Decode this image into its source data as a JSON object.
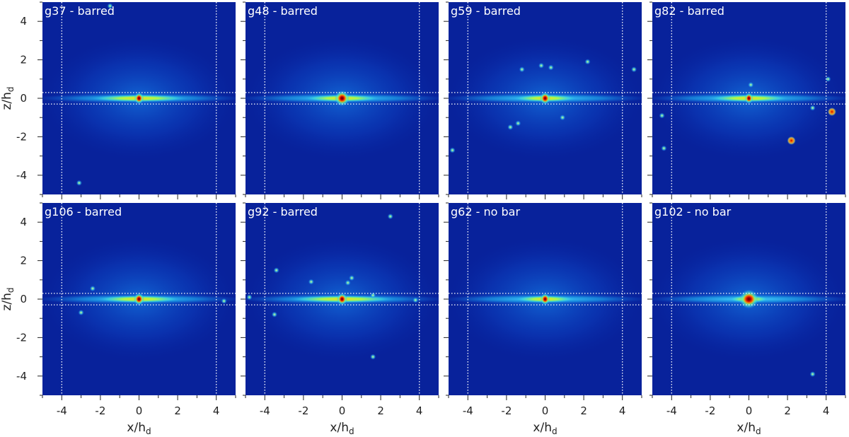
{
  "chart_data": {
    "type": "heatmap",
    "description_colormap": "jet",
    "xlabel": "x/h",
    "xlabel_sub": "d",
    "ylabel": "z/h",
    "ylabel_sub": "d",
    "xlim": [
      -5,
      5
    ],
    "ylim": [
      -5,
      5
    ],
    "x_ticks": [
      -4,
      -2,
      0,
      2,
      4
    ],
    "y_ticks": [
      -4,
      -2,
      0,
      2,
      4
    ],
    "reference_lines": {
      "vertical_x": [
        -4,
        4
      ],
      "horizontal_z": [
        -0.3,
        0.3
      ]
    },
    "panels": [
      {
        "title": "g37 - barred",
        "row": 0,
        "col": 0,
        "bar_length": 2.4,
        "bulge": 0.55,
        "blobs": [
          {
            "x": -3.1,
            "z": -4.4
          },
          {
            "x": -1.5,
            "z": 4.8
          }
        ]
      },
      {
        "title": "g48 - barred",
        "row": 0,
        "col": 1,
        "bar_length": 1.9,
        "bulge": 0.85,
        "blobs": []
      },
      {
        "title": "g59 - barred",
        "row": 0,
        "col": 2,
        "bar_length": 1.6,
        "bulge": 0.6,
        "blobs": [
          {
            "x": -1.2,
            "z": 1.5
          },
          {
            "x": -0.2,
            "z": 1.7
          },
          {
            "x": 0.3,
            "z": 1.6
          },
          {
            "x": 0.9,
            "z": -1.0
          },
          {
            "x": -1.4,
            "z": -1.3
          },
          {
            "x": -1.8,
            "z": -1.5
          },
          {
            "x": 2.2,
            "z": 1.9
          },
          {
            "x": 4.6,
            "z": 1.5
          },
          {
            "x": -4.8,
            "z": -2.7
          }
        ]
      },
      {
        "title": "g82 - barred",
        "row": 0,
        "col": 3,
        "bar_length": 2.0,
        "bulge": 0.5,
        "blobs": [
          {
            "x": 0.1,
            "z": 0.7
          },
          {
            "x": 2.2,
            "z": -2.2
          },
          {
            "x": 4.3,
            "z": -0.7
          },
          {
            "x": -4.5,
            "z": -0.9
          },
          {
            "x": -4.4,
            "z": -2.6
          },
          {
            "x": 3.3,
            "z": -0.5
          },
          {
            "x": 4.1,
            "z": 1.0
          }
        ]
      },
      {
        "title": "g106 - barred",
        "row": 1,
        "col": 0,
        "bar_length": 2.1,
        "bulge": 0.6,
        "blobs": [
          {
            "x": -2.4,
            "z": 0.55
          },
          {
            "x": -3.0,
            "z": -0.7
          },
          {
            "x": 4.4,
            "z": -0.1
          }
        ]
      },
      {
        "title": "g92 - barred",
        "row": 1,
        "col": 1,
        "bar_length": 2.6,
        "bulge": 0.6,
        "blobs": [
          {
            "x": 2.5,
            "z": 4.3
          },
          {
            "x": -3.4,
            "z": 1.5
          },
          {
            "x": -1.6,
            "z": 0.9
          },
          {
            "x": 0.3,
            "z": 0.85
          },
          {
            "x": 0.5,
            "z": 1.1
          },
          {
            "x": 1.6,
            "z": 0.2
          },
          {
            "x": -3.5,
            "z": -0.8
          },
          {
            "x": 1.6,
            "z": -3.0
          },
          {
            "x": 3.8,
            "z": -0.05
          },
          {
            "x": -4.8,
            "z": 0.1
          }
        ]
      },
      {
        "title": "g62 - no bar",
        "row": 1,
        "col": 2,
        "bar_length": 1.5,
        "bulge": 0.55,
        "blobs": []
      },
      {
        "title": "g102 - no bar",
        "row": 1,
        "col": 3,
        "bar_length": 1.0,
        "bulge": 1.1,
        "blobs": [
          {
            "x": 3.3,
            "z": -3.9
          }
        ]
      }
    ]
  }
}
